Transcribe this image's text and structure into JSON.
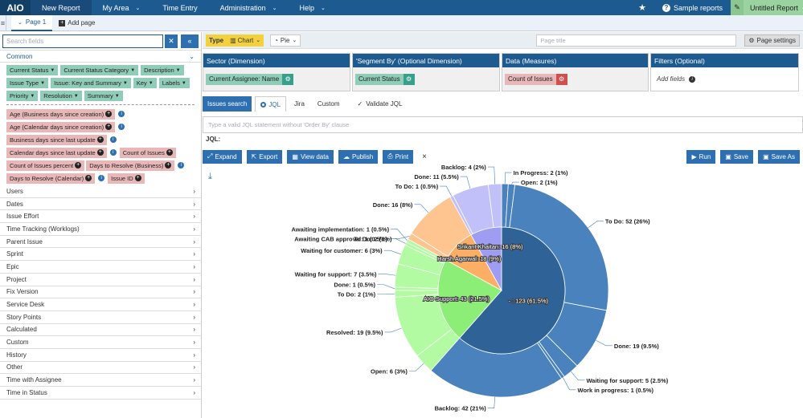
{
  "nav": {
    "logo": "AIO",
    "items": [
      {
        "label": "New Report",
        "chev": false,
        "active": true
      },
      {
        "label": "My Area",
        "chev": true,
        "active": false
      },
      {
        "label": "Time Entry",
        "chev": false,
        "active": false
      },
      {
        "label": "Administration",
        "chev": true,
        "active": false
      },
      {
        "label": "Help",
        "chev": true,
        "active": false
      }
    ],
    "sample_reports": "Sample reports",
    "untitled_report": "Untitled Report"
  },
  "tabs": {
    "page1": "Page 1",
    "add_page": "Add page"
  },
  "left": {
    "search_placeholder": "Search fields",
    "common_label": "Common",
    "green_chips": [
      "Current Status",
      "Current Status Category",
      "Description",
      "Issue Type",
      "Issue: Key and Summary",
      "Key",
      "Labels",
      "Priority",
      "Resolution",
      "Summary"
    ],
    "red_rows": [
      [
        {
          "label": "Age (Business days since creation)",
          "info": true
        }
      ],
      [
        {
          "label": "Age (Calendar days since creation)",
          "info": true
        }
      ],
      [
        {
          "label": "Business days since last update",
          "info": true
        }
      ],
      [
        {
          "label": "Calendar days since last update",
          "info": true
        },
        {
          "label": "Count of Issues",
          "info": false
        }
      ],
      [
        {
          "label": "Count of Issues percent",
          "info": false
        },
        {
          "label": "Days to Resolve (Business)",
          "info": true
        }
      ],
      [
        {
          "label": "Days to Resolve (Calendar)",
          "info": true
        },
        {
          "label": "Issue ID",
          "info": false
        }
      ]
    ],
    "categories": [
      "Users",
      "Dates",
      "Issue Effort",
      "Time Tracking (Worklogs)",
      "Parent Issue",
      "Sprint",
      "Epic",
      "Project",
      "Fix Version",
      "Service Desk",
      "Story Points",
      "Calculated",
      "Custom",
      "History",
      "Other",
      "Time with Assignee",
      "Time in Status"
    ]
  },
  "toolbar": {
    "type_label": "Type",
    "chart_label": "Chart",
    "pie_label": "Pie",
    "page_title_placeholder": "Page title",
    "page_settings": "Page settings"
  },
  "dims": {
    "sector_head": "Sector (Dimension)",
    "sector_value": "Current Assignee: Name",
    "segment_head": "'Segment By' (Optional Dimension)",
    "segment_value": "Current Status",
    "data_head": "Data (Measures)",
    "data_value": "Count of Issues",
    "filters_head": "Filters (Optional)",
    "add_fields": "Add fields"
  },
  "query": {
    "tabs": [
      "Issues search",
      "JQL",
      "Jira",
      "Custom"
    ],
    "validate": "Validate JQL",
    "placeholder": "Type a valid JQL statement without 'Order By' clause",
    "jql_label": "JQL:"
  },
  "actions": {
    "expand": "Expand",
    "export": "Export",
    "view_data": "View data",
    "publish": "Publish",
    "print": "Print",
    "close": "×",
    "run": "Run",
    "save": "Save",
    "save_as": "Save As"
  },
  "colors": {
    "inner": [
      "#2f6297",
      "#8ced77",
      "#fcaf64",
      "#9e9cf3"
    ],
    "outer": [
      "#4a82bd",
      "#b3fba3",
      "#ffc590",
      "#c1c0f8"
    ],
    "accent": "#1c5a8f"
  },
  "chart_data": {
    "type": "pie",
    "inner": [
      {
        "label": "- : 123 (61.5%)",
        "value": 123
      },
      {
        "label": "AIO Support: 43 (21.5%)",
        "value": 43
      },
      {
        "label": "Harsh Agarwal: 18 (9%)",
        "value": 18
      },
      {
        "label": "Srikant Khaitan: 16 (8%)",
        "value": 16
      }
    ],
    "outer": [
      {
        "group": 0,
        "label": "In Progress: 2 (1%)",
        "value": 2
      },
      {
        "group": 0,
        "label": "Open: 2 (1%)",
        "value": 2
      },
      {
        "group": 0,
        "label": "To Do: 52 (26%)",
        "value": 52
      },
      {
        "group": 0,
        "label": "Done: 19 (9.5%)",
        "value": 19
      },
      {
        "group": 0,
        "label": "Waiting for support: 5 (2.5%)",
        "value": 5
      },
      {
        "group": 0,
        "label": "Work in progress: 1 (0.5%)",
        "value": 1
      },
      {
        "group": 0,
        "label": "Backlog: 42 (21%)",
        "value": 42
      },
      {
        "group": 1,
        "label": "Open: 6 (3%)",
        "value": 6
      },
      {
        "group": 1,
        "label": "Resolved: 19 (9.5%)",
        "value": 19
      },
      {
        "group": 1,
        "label": "To Do: 2 (1%)",
        "value": 2
      },
      {
        "group": 1,
        "label": "Done: 1 (0.5%)",
        "value": 1
      },
      {
        "group": 1,
        "label": "Waiting for support: 7 (3.5%)",
        "value": 7
      },
      {
        "group": 1,
        "label": "Waiting for customer: 6 (3%)",
        "value": 6
      },
      {
        "group": 1,
        "label": "Awaiting CAB approval: 1 (0.5%)",
        "value": 1
      },
      {
        "group": 1,
        "label": "Awaiting implementation: 1 (0.5%)",
        "value": 1
      },
      {
        "group": 2,
        "label": "To Do: 2 (1%)",
        "value": 2
      },
      {
        "group": 2,
        "label": "Done: 16 (8%)",
        "value": 16
      },
      {
        "group": 3,
        "label": "To Do: 1 (0.5%)",
        "value": 1
      },
      {
        "group": 3,
        "label": "Done: 11 (5.5%)",
        "value": 11
      },
      {
        "group": 3,
        "label": "Backlog: 4 (2%)",
        "value": 4
      }
    ]
  }
}
